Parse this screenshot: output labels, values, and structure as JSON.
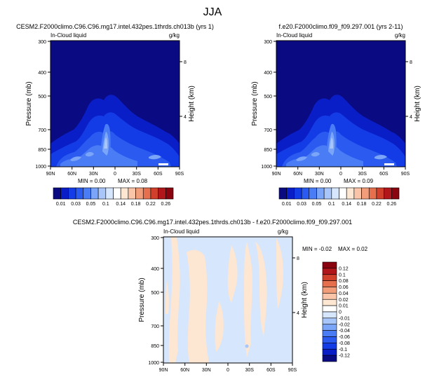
{
  "page_title": "JJA",
  "chart_data": [
    {
      "type": "heatmap",
      "title": "CESM2.F2000climo.C96.C96.mg17.intel.432pes.1thrds.ch013b (yrs 1)",
      "variable_label": "In-Cloud liquid",
      "units_label": "g/kg",
      "ylabel": "Pressure (mb)",
      "ylabel_right": "Height (km)",
      "x_ticks": [
        "90N",
        "60N",
        "30N",
        "0",
        "30S",
        "60S",
        "90S"
      ],
      "y_ticks": [
        "300",
        "400",
        "500",
        "700",
        "850",
        "1000"
      ],
      "y_right_ticks": [
        "8",
        "4"
      ],
      "ylim": [
        1000,
        300
      ],
      "xlim": [
        90,
        -90
      ],
      "min_label": "MIN =   0.00",
      "max_label": "MAX =   0.08",
      "colorbar_ticks": [
        "0.01",
        "0.03",
        "0.05",
        "0.1",
        "0.14",
        "0.18",
        "0.22",
        "0.26"
      ],
      "colorbar_colors": [
        "#0a0a82",
        "#0a1ec8",
        "#143ce6",
        "#2a5af0",
        "#4a7cf5",
        "#7aa5f8",
        "#a8c6fa",
        "#d6e6fc",
        "#ffffff",
        "#fde6d2",
        "#f9c4a8",
        "#f19d7a",
        "#e6704e",
        "#d0402a",
        "#b0161a",
        "#8a0410"
      ]
    },
    {
      "type": "heatmap",
      "title": "f.e20.F2000climo.f09_f09.297.001 (yrs 2-11)",
      "variable_label": "In-Cloud liquid",
      "units_label": "g/kg",
      "ylabel": "Pressure (mb)",
      "ylabel_right": "Height (km)",
      "x_ticks": [
        "90N",
        "60N",
        "30N",
        "0",
        "30S",
        "60S",
        "90S"
      ],
      "y_ticks": [
        "300",
        "400",
        "500",
        "700",
        "850",
        "1000"
      ],
      "y_right_ticks": [
        "8",
        "4"
      ],
      "ylim": [
        1000,
        300
      ],
      "xlim": [
        90,
        -90
      ],
      "min_label": "MIN =   0.00",
      "max_label": "MAX =   0.09",
      "colorbar_ticks": [
        "0.01",
        "0.03",
        "0.05",
        "0.1",
        "0.14",
        "0.18",
        "0.22",
        "0.26"
      ],
      "colorbar_colors": [
        "#0a0a82",
        "#0a1ec8",
        "#143ce6",
        "#2a5af0",
        "#4a7cf5",
        "#7aa5f8",
        "#a8c6fa",
        "#d6e6fc",
        "#ffffff",
        "#fde6d2",
        "#f9c4a8",
        "#f19d7a",
        "#e6704e",
        "#d0402a",
        "#b0161a",
        "#8a0410"
      ]
    },
    {
      "type": "heatmap",
      "title": "CESM2.F2000climo.C96.C96.mg17.intel.432pes.1thrds.ch013b - f.e20.F2000climo.f09_f09.297.001",
      "variable_label": "In-Cloud liquid",
      "units_label": "g/kg",
      "ylabel": "Pressure (mb)",
      "ylabel_right": "Height (km)",
      "x_ticks": [
        "90N",
        "60N",
        "30N",
        "0",
        "30S",
        "60S",
        "90S"
      ],
      "y_ticks": [
        "300",
        "400",
        "500",
        "700",
        "850",
        "1000"
      ],
      "y_right_ticks": [
        "8",
        "4"
      ],
      "ylim": [
        1000,
        300
      ],
      "xlim": [
        90,
        -90
      ],
      "min_label": "MIN =  -0.02",
      "max_label": "MAX =   0.02",
      "colorbar_ticks": [
        "0.12",
        "0.1",
        "0.08",
        "0.06",
        "0.04",
        "0.02",
        "0.01",
        "0",
        "-0.01",
        "-0.02",
        "-0.04",
        "-0.06",
        "-0.08",
        "-0.1",
        "-0.12"
      ],
      "colorbar_colors": [
        "#8a0410",
        "#b0161a",
        "#d0402a",
        "#e6704e",
        "#f19d7a",
        "#f9c4a8",
        "#fde6d2",
        "#ffffff",
        "#d6e6fc",
        "#a8c6fa",
        "#7aa5f8",
        "#4a7cf5",
        "#2a5af0",
        "#143ce6",
        "#0a1ec8",
        "#0a0a82"
      ]
    }
  ]
}
